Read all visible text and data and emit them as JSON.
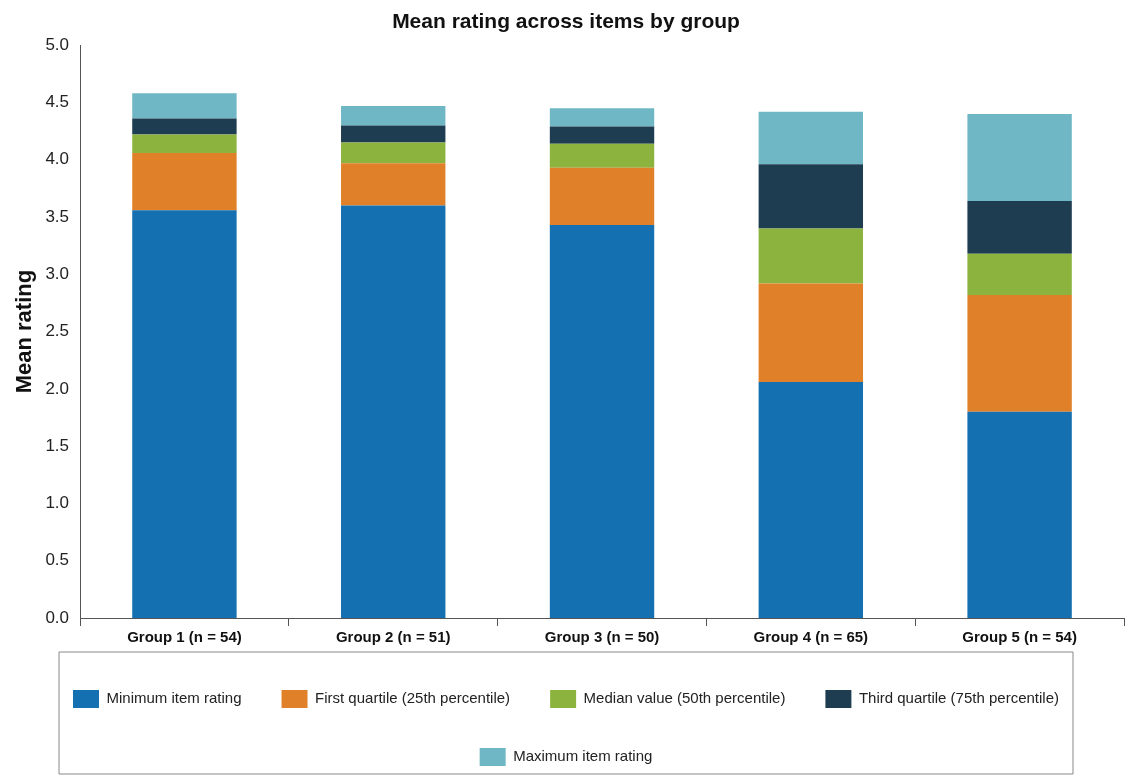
{
  "chart_data": {
    "type": "bar",
    "title": "Mean rating across items by group",
    "ylabel": "Mean rating",
    "categories": [
      "Group 1 (n = 54)",
      "Group 2 (n = 51)",
      "Group 3 (n = 50)",
      "Group 4 (n = 65)",
      "Group 5 (n = 54)"
    ],
    "stacked": true,
    "series": [
      {
        "name": "Minimum item rating",
        "color": "#1470b0",
        "values": [
          3.56,
          3.6,
          3.43,
          2.06,
          1.8
        ]
      },
      {
        "name": "First quartile (25th percentile)",
        "color": "#e0812a",
        "values": [
          0.5,
          0.37,
          0.5,
          0.86,
          1.02
        ]
      },
      {
        "name": "Median value (50th percentile)",
        "color": "#8db33f",
        "values": [
          0.16,
          0.18,
          0.21,
          0.48,
          0.36
        ]
      },
      {
        "name": "Third quartile (75th percentile)",
        "color": "#1f3d50",
        "values": [
          0.14,
          0.15,
          0.15,
          0.56,
          0.46
        ]
      },
      {
        "name": "Maximum item rating",
        "color": "#6fb7c5",
        "values": [
          0.22,
          0.17,
          0.16,
          0.46,
          0.76
        ]
      }
    ],
    "ylim": [
      0,
      5
    ],
    "yticks": [
      {
        "value": 0,
        "label": "0.0"
      },
      0.5,
      {
        "value": 1,
        "label": "1.0"
      },
      1.5,
      {
        "value": 2,
        "label": "2.0"
      },
      2.5,
      {
        "value": 3,
        "label": "3.0"
      },
      3.5,
      {
        "value": 4,
        "label": "4.0"
      },
      4.5,
      {
        "value": 5,
        "label": "5.0"
      }
    ],
    "grid": false,
    "legend": "bottom"
  }
}
